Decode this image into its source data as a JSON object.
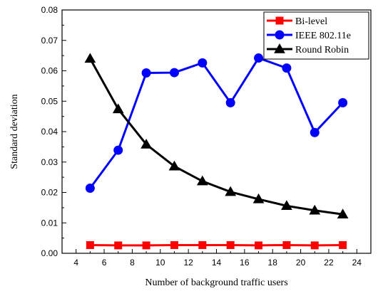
{
  "chart_data": {
    "type": "line",
    "xlabel": "Number of  background traffic users",
    "ylabel": "Standard deviation",
    "xlim": [
      3,
      25
    ],
    "ylim": [
      0,
      0.08
    ],
    "x_ticks": [
      "4",
      "6",
      "8",
      "10",
      "12",
      "14",
      "16",
      "18",
      "20",
      "22",
      "24"
    ],
    "y_ticks": [
      "0.00",
      "0.01",
      "0.02",
      "0.03",
      "0.04",
      "0.05",
      "0.06",
      "0.07",
      "0.08"
    ],
    "legend_position": "top-right",
    "grid": false,
    "x": [
      5,
      7,
      9,
      11,
      13,
      15,
      17,
      19,
      21,
      23
    ],
    "series": [
      {
        "name": "Bi-level",
        "color": "#ff0000",
        "marker": "square",
        "values": [
          0.0027,
          0.0026,
          0.0026,
          0.0027,
          0.0027,
          0.0027,
          0.0026,
          0.0027,
          0.0026,
          0.0027
        ]
      },
      {
        "name": "IEEE 802.11e",
        "color": "#0000ff",
        "marker": "circle",
        "values": [
          0.0214,
          0.0339,
          0.0593,
          0.0594,
          0.0626,
          0.0495,
          0.0642,
          0.0609,
          0.0397,
          0.0495
        ]
      },
      {
        "name": "Round Robin",
        "color": "#000000",
        "marker": "triangle",
        "values": [
          0.064,
          0.0474,
          0.0358,
          0.0286,
          0.0237,
          0.0202,
          0.0178,
          0.0156,
          0.0141,
          0.0128
        ]
      }
    ]
  }
}
